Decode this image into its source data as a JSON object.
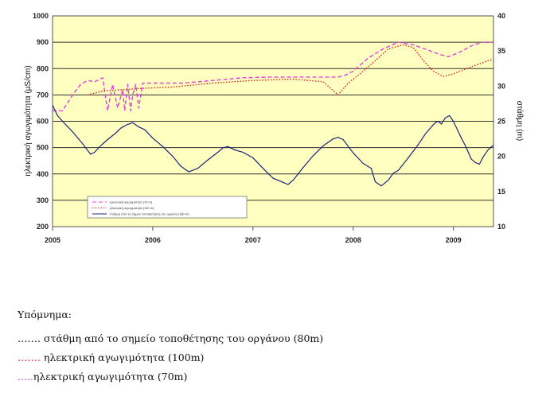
{
  "chart_data": {
    "type": "line",
    "left_axis": {
      "label": "ηλεκτρική αγωγιμότητα (μS/cm)",
      "ticks": [
        200,
        300,
        400,
        500,
        600,
        700,
        800,
        900,
        1000
      ],
      "range": [
        200,
        1000
      ]
    },
    "right_axis": {
      "label": "στάθμη (m)",
      "ticks": [
        10,
        15,
        20,
        25,
        30,
        35,
        40
      ],
      "range": [
        10,
        40
      ]
    },
    "x_axis": {
      "ticks": [
        "2005",
        "2006",
        "2007",
        "2008",
        "2009"
      ],
      "range": [
        2005.0,
        2009.4
      ]
    },
    "grid": true,
    "legend_placement": "bottom-left",
    "series": [
      {
        "name": "ηλεκτρική αγωγιμότητα (70 m)",
        "axis": "left",
        "color": "#e040e0",
        "style": "dash",
        "x": [
          2005.0,
          2005.1,
          2005.2,
          2005.28,
          2005.35,
          2005.42,
          2005.5,
          2005.55,
          2005.6,
          2005.65,
          2005.7,
          2005.72,
          2005.75,
          2005.78,
          2005.8,
          2005.83,
          2005.86,
          2005.9,
          2006.0,
          2006.3,
          2006.6,
          2006.9,
          2007.2,
          2007.5,
          2007.75,
          2007.85,
          2007.92,
          2008.0,
          2008.15,
          2008.3,
          2008.45,
          2008.6,
          2008.75,
          2008.85,
          2008.95,
          2009.05,
          2009.2,
          2009.3,
          2009.4
        ],
        "y": [
          640,
          640,
          700,
          740,
          755,
          750,
          765,
          640,
          740,
          650,
          720,
          640,
          740,
          640,
          700,
          740,
          650,
          745,
          745,
          745,
          755,
          765,
          768,
          768,
          768,
          768,
          775,
          790,
          840,
          875,
          900,
          890,
          870,
          855,
          845,
          860,
          890,
          900,
          900
        ]
      },
      {
        "name": "ηλεκτρική αγωγιμότητα (100 m)",
        "axis": "left",
        "color": "#e02020",
        "style": "dot",
        "x": [
          2005.35,
          2005.5,
          2005.7,
          2005.9,
          2006.2,
          2006.6,
          2007.0,
          2007.4,
          2007.7,
          2007.85,
          2007.95,
          2008.1,
          2008.25,
          2008.35,
          2008.5,
          2008.6,
          2008.7,
          2008.8,
          2008.9,
          2009.0,
          2009.1,
          2009.2,
          2009.35,
          2009.4
        ],
        "y": [
          700,
          715,
          720,
          725,
          730,
          745,
          755,
          760,
          750,
          700,
          745,
          790,
          840,
          875,
          890,
          880,
          830,
          790,
          770,
          780,
          795,
          810,
          830,
          835
        ]
      },
      {
        "name": "στάθμη από το σημείο τοποθέτησης του οργάνου (80 m)",
        "axis": "right",
        "color": "#1a237e",
        "style": "solid",
        "x": [
          2005.0,
          2005.05,
          2005.1,
          2005.2,
          2005.3,
          2005.38,
          2005.42,
          2005.48,
          2005.55,
          2005.62,
          2005.68,
          2005.74,
          2005.8,
          2005.86,
          2005.92,
          2006.0,
          2006.1,
          2006.2,
          2006.28,
          2006.36,
          2006.45,
          2006.55,
          2006.65,
          2006.7,
          2006.75,
          2006.82,
          2006.9,
          2007.0,
          2007.1,
          2007.2,
          2007.3,
          2007.35,
          2007.4,
          2007.5,
          2007.6,
          2007.7,
          2007.8,
          2007.85,
          2007.9,
          2008.0,
          2008.1,
          2008.18,
          2008.22,
          2008.28,
          2008.35,
          2008.4,
          2008.45,
          2008.55,
          2008.65,
          2008.72,
          2008.78,
          2008.82,
          2008.85,
          2008.88,
          2008.92,
          2008.96,
          2009.0,
          2009.08,
          2009.12,
          2009.18,
          2009.22,
          2009.26,
          2009.3,
          2009.35,
          2009.4
        ],
        "y": [
          27.3,
          25.8,
          25.0,
          23.5,
          21.8,
          20.3,
          20.6,
          21.5,
          22.4,
          23.2,
          24.0,
          24.5,
          24.8,
          24.2,
          23.8,
          22.6,
          21.4,
          20.0,
          18.6,
          17.8,
          18.3,
          19.5,
          20.6,
          21.2,
          21.4,
          20.9,
          20.6,
          19.8,
          18.3,
          16.9,
          16.3,
          16.0,
          16.6,
          18.4,
          20.1,
          21.5,
          22.5,
          22.7,
          22.4,
          20.5,
          19.0,
          18.3,
          16.4,
          15.8,
          16.6,
          17.6,
          18.0,
          19.8,
          21.7,
          23.2,
          24.2,
          24.8,
          25.0,
          24.6,
          25.5,
          25.8,
          25.0,
          22.6,
          21.5,
          19.6,
          19.1,
          18.9,
          20.0,
          21.0,
          21.6
        ]
      }
    ]
  },
  "legend": {
    "title": "Υπόμνημα:",
    "items": [
      {
        "marker": "…….",
        "text": " στάθμη από το σημείο τοποθέτησης του οργάνου (80m)",
        "color": "#1a237e"
      },
      {
        "marker": "…….",
        "text": " ηλεκτρική αγωγιμότητα (100m)",
        "color": "#e02020"
      },
      {
        "marker": ".....",
        "text": "ηλεκτρική αγωγιμότητα (70m)",
        "color": "#e040e0"
      }
    ]
  },
  "colors": {
    "plot_background": "#ffffc0",
    "gridline": "#333333"
  }
}
